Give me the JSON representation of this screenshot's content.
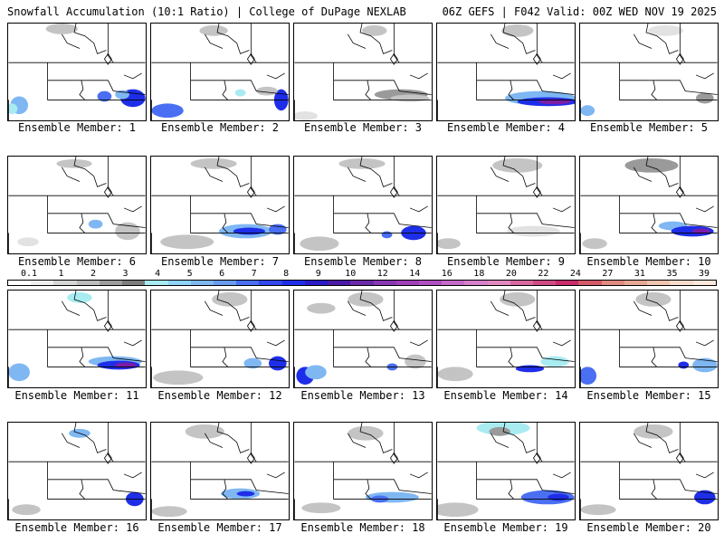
{
  "header": {
    "title": "Snowfall Accumulation (10:1 Ratio) | College of DuPage NEXLAB",
    "run": "06Z GEFS | F042 Valid: 00Z WED NOV 19 2025"
  },
  "colors": {
    "light_gray": "#e2e2e2",
    "gray": "#c4c4c4",
    "dark_gray": "#9a9a9a",
    "cyan": "#a8ecf2",
    "light_blue": "#7fb7f2",
    "blue": "#4a6ff2",
    "deep_blue": "#1e2ee8",
    "purple": "#7a1ea8",
    "magenta": "#c0247a"
  },
  "scale": {
    "labels": [
      "0.1",
      "1",
      "2",
      "3",
      "4",
      "5",
      "6",
      "7",
      "8",
      "9",
      "10",
      "12",
      "14",
      "16",
      "18",
      "20",
      "22",
      "24",
      "27",
      "31",
      "35",
      "39"
    ],
    "colors": [
      "#ffffff",
      "#eeeeee",
      "#d6d6d6",
      "#bdbdbd",
      "#9e9e9e",
      "#7e7e7e",
      "#a8ecf2",
      "#8fd4f7",
      "#7fb7f2",
      "#6b9bf0",
      "#4a6ff2",
      "#3347ee",
      "#1e2ee8",
      "#2a1ac8",
      "#4a1aa6",
      "#6a2aa8",
      "#8838b4",
      "#a040b8",
      "#b050c0",
      "#c46ac8",
      "#d680cc",
      "#e08ac0",
      "#d86aa0",
      "#d04a86",
      "#c82c6a",
      "#d45a6a",
      "#e08a80",
      "#e8a896",
      "#f0c4b0",
      "#f6dccc",
      "#fae8dc"
    ]
  },
  "members": [
    {
      "caption": "Ensemble Member: 1"
    },
    {
      "caption": "Ensemble Member: 2"
    },
    {
      "caption": "Ensemble Member: 3"
    },
    {
      "caption": "Ensemble Member: 4"
    },
    {
      "caption": "Ensemble Member: 5"
    },
    {
      "caption": "Ensemble Member: 6"
    },
    {
      "caption": "Ensemble Member: 7"
    },
    {
      "caption": "Ensemble Member: 8"
    },
    {
      "caption": "Ensemble Member: 9"
    },
    {
      "caption": "Ensemble Member: 10"
    },
    {
      "caption": "Ensemble Member: 11"
    },
    {
      "caption": "Ensemble Member: 12"
    },
    {
      "caption": "Ensemble Member: 13"
    },
    {
      "caption": "Ensemble Member: 14"
    },
    {
      "caption": "Ensemble Member: 15"
    },
    {
      "caption": "Ensemble Member: 16"
    },
    {
      "caption": "Ensemble Member: 17"
    },
    {
      "caption": "Ensemble Member: 18"
    },
    {
      "caption": "Ensemble Member: 19"
    },
    {
      "caption": "Ensemble Member: 20"
    }
  ]
}
